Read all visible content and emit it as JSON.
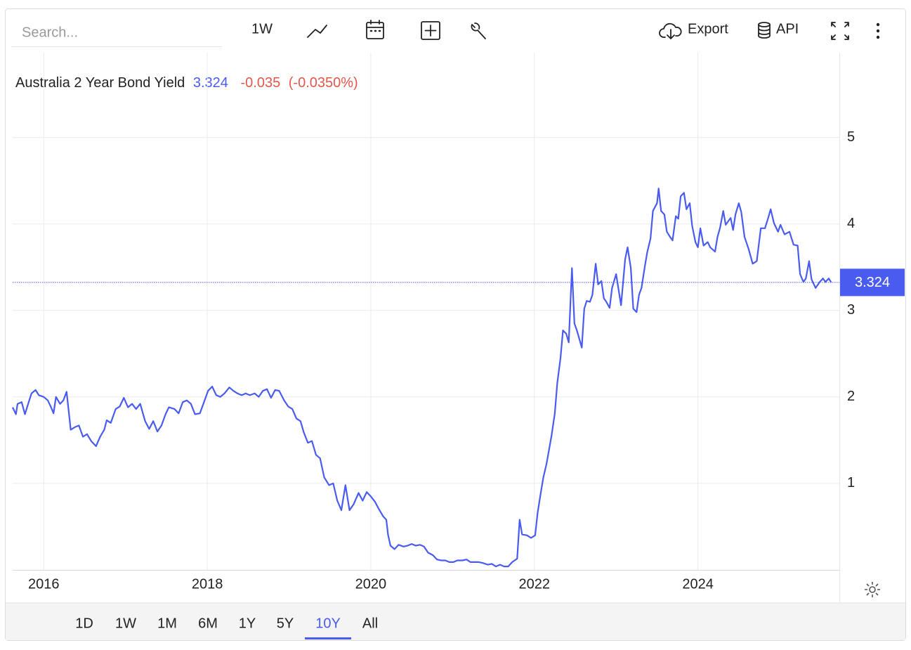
{
  "toolbar": {
    "search_placeholder": "Search...",
    "interval": "1W",
    "export": "Export",
    "api": "API"
  },
  "ranges": [
    "1D",
    "1W",
    "1M",
    "6M",
    "1Y",
    "5Y",
    "10Y",
    "All"
  ],
  "active_range": 6,
  "chart_data": {
    "type": "line",
    "title": "Australia 2 Year Bond Yield",
    "change": "-0.035",
    "change_pct": "(-0.0350%)",
    "xlim": [
      2015.62,
      2025.73
    ],
    "xticks": [
      2016,
      2018,
      2020,
      2022,
      2024
    ],
    "ylim": [
      0,
      5.98
    ],
    "yticks": [
      1,
      2,
      3,
      4,
      5
    ],
    "grid": true,
    "series": [
      {
        "name": "Australia 2 Year Bond Yield",
        "color": "#4a5cf0",
        "x": [
          2015.62,
          2015.66,
          2015.68,
          2015.73,
          2015.77,
          2015.81,
          2015.85,
          2015.9,
          2015.94,
          2016.0,
          2016.05,
          2016.09,
          2016.12,
          2016.15,
          2016.2,
          2016.24,
          2016.28,
          2016.33,
          2016.38,
          2016.43,
          2016.48,
          2016.53,
          2016.58,
          2016.64,
          2016.69,
          2016.74,
          2016.77,
          2016.82,
          2016.88,
          2016.93,
          2016.98,
          2017.03,
          2017.08,
          2017.13,
          2017.18,
          2017.24,
          2017.29,
          2017.34,
          2017.39,
          2017.44,
          2017.49,
          2017.53,
          2017.6,
          2017.65,
          2017.7,
          2017.75,
          2017.8,
          2017.85,
          2017.91,
          2017.96,
          2018.01,
          2018.06,
          2018.11,
          2018.16,
          2018.21,
          2018.27,
          2018.32,
          2018.37,
          2018.42,
          2018.47,
          2018.52,
          2018.58,
          2018.63,
          2018.68,
          2018.73,
          2018.78,
          2018.83,
          2018.88,
          2018.94,
          2018.99,
          2019.04,
          2019.09,
          2019.14,
          2019.18,
          2019.23,
          2019.28,
          2019.33,
          2019.38,
          2019.43,
          2019.49,
          2019.54,
          2019.59,
          2019.64,
          2019.69,
          2019.74,
          2019.79,
          2019.85,
          2019.9,
          2019.95,
          2020.0,
          2020.05,
          2020.1,
          2020.15,
          2020.19,
          2020.21,
          2020.24,
          2020.29,
          2020.34,
          2020.4,
          2020.45,
          2020.5,
          2020.55,
          2020.6,
          2020.65,
          2020.7,
          2020.76,
          2020.81,
          2020.86,
          2020.91,
          2020.96,
          2021.01,
          2021.06,
          2021.12,
          2021.17,
          2021.22,
          2021.27,
          2021.32,
          2021.37,
          2021.43,
          2021.48,
          2021.53,
          2021.58,
          2021.63,
          2021.68,
          2021.73,
          2021.79,
          2021.82,
          2021.85,
          2021.91,
          2021.96,
          2022.01,
          2022.04,
          2022.08,
          2022.11,
          2022.15,
          2022.18,
          2022.21,
          2022.25,
          2022.28,
          2022.32,
          2022.35,
          2022.39,
          2022.42,
          2022.46,
          2022.49,
          2022.52,
          2022.58,
          2022.61,
          2022.64,
          2022.68,
          2022.71,
          2022.75,
          2022.78,
          2022.82,
          2022.85,
          2022.88,
          2022.92,
          2022.95,
          2023.0,
          2023.06,
          2023.11,
          2023.14,
          2023.18,
          2023.21,
          2023.25,
          2023.28,
          2023.31,
          2023.35,
          2023.38,
          2023.42,
          2023.45,
          2023.5,
          2023.52,
          2023.55,
          2023.59,
          2023.62,
          2023.66,
          2023.69,
          2023.73,
          2023.76,
          2023.79,
          2023.83,
          2023.86,
          2023.9,
          2023.93,
          2023.97,
          2024.0,
          2024.03,
          2024.07,
          2024.12,
          2024.15,
          2024.21,
          2024.24,
          2024.27,
          2024.31,
          2024.34,
          2024.4,
          2024.43,
          2024.46,
          2024.5,
          2024.53,
          2024.57,
          2024.62,
          2024.67,
          2024.72,
          2024.77,
          2024.82,
          2024.86,
          2024.89,
          2024.93,
          2024.98,
          2025.01,
          2025.06,
          2025.12,
          2025.17,
          2025.22,
          2025.25,
          2025.29,
          2025.32,
          2025.36,
          2025.39,
          2025.44,
          2025.49,
          2025.53,
          2025.56,
          2025.6,
          2025.63
        ],
        "values": [
          1.88,
          1.8,
          1.92,
          1.94,
          1.8,
          1.92,
          2.04,
          2.08,
          2.02,
          2.0,
          1.96,
          1.88,
          1.81,
          2.0,
          1.92,
          1.96,
          2.06,
          1.62,
          1.65,
          1.67,
          1.54,
          1.57,
          1.49,
          1.43,
          1.54,
          1.62,
          1.73,
          1.7,
          1.86,
          1.89,
          1.99,
          1.88,
          1.92,
          1.86,
          1.92,
          1.72,
          1.63,
          1.72,
          1.6,
          1.67,
          1.8,
          1.88,
          1.86,
          1.81,
          1.94,
          1.96,
          1.92,
          1.8,
          1.81,
          1.94,
          2.07,
          2.12,
          2.02,
          2.0,
          2.04,
          2.11,
          2.07,
          2.04,
          2.02,
          2.04,
          2.02,
          2.04,
          2.0,
          2.07,
          2.09,
          1.99,
          2.08,
          2.07,
          1.96,
          1.89,
          1.86,
          1.75,
          1.72,
          1.59,
          1.47,
          1.49,
          1.33,
          1.29,
          1.07,
          0.98,
          1.0,
          0.8,
          0.69,
          0.98,
          0.69,
          0.76,
          0.89,
          0.8,
          0.9,
          0.85,
          0.79,
          0.7,
          0.62,
          0.58,
          0.41,
          0.28,
          0.24,
          0.29,
          0.27,
          0.28,
          0.3,
          0.28,
          0.29,
          0.27,
          0.2,
          0.17,
          0.12,
          0.11,
          0.11,
          0.09,
          0.09,
          0.11,
          0.11,
          0.12,
          0.09,
          0.09,
          0.09,
          0.08,
          0.06,
          0.07,
          0.04,
          0.06,
          0.04,
          0.04,
          0.09,
          0.13,
          0.58,
          0.41,
          0.4,
          0.37,
          0.4,
          0.66,
          0.9,
          1.07,
          1.23,
          1.39,
          1.55,
          1.81,
          2.16,
          2.45,
          2.77,
          2.73,
          2.63,
          3.49,
          2.85,
          2.77,
          2.57,
          3.02,
          3.11,
          3.1,
          3.18,
          3.54,
          3.3,
          3.34,
          3.14,
          3.1,
          3.03,
          3.26,
          3.42,
          3.06,
          3.59,
          3.73,
          3.49,
          3.02,
          2.98,
          3.18,
          3.26,
          3.5,
          3.67,
          3.83,
          4.15,
          4.24,
          4.41,
          4.15,
          4.11,
          3.91,
          3.85,
          3.81,
          4.09,
          4.06,
          4.32,
          4.36,
          4.17,
          4.24,
          3.98,
          3.79,
          3.73,
          3.95,
          3.75,
          3.79,
          3.73,
          3.68,
          3.85,
          3.95,
          4.15,
          3.99,
          4.07,
          3.93,
          4.11,
          4.24,
          4.14,
          3.85,
          3.71,
          3.54,
          3.57,
          3.95,
          3.95,
          4.07,
          4.17,
          4.01,
          3.91,
          3.99,
          3.88,
          3.91,
          3.76,
          3.75,
          3.42,
          3.33,
          3.37,
          3.57,
          3.36,
          3.26,
          3.33,
          3.37,
          3.33,
          3.37,
          3.324
        ]
      }
    ]
  }
}
